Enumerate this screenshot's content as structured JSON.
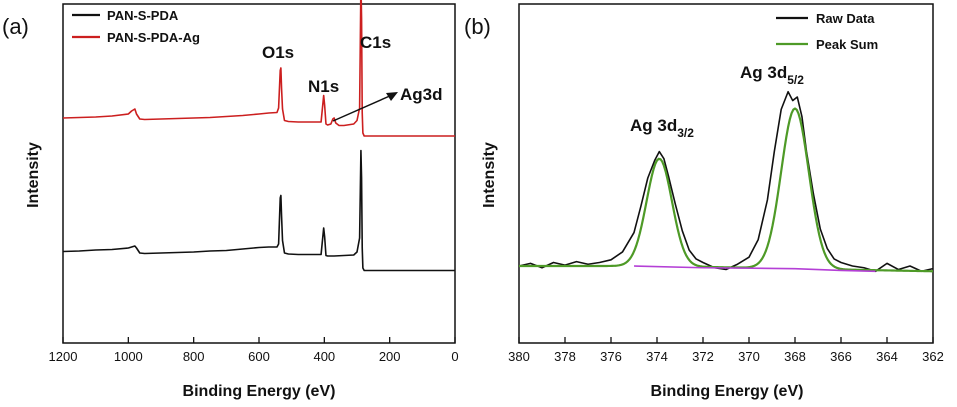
{
  "chart_data": [
    {
      "panel_label": "(a)",
      "type": "line",
      "xlabel": "Binding Energy (eV)",
      "ylabel": "Intensity",
      "xlim": [
        1200,
        0
      ],
      "x_ticks": [
        "1200",
        "1000",
        "800",
        "600",
        "400",
        "200",
        "0"
      ],
      "x_tick_values": [
        1200,
        1000,
        800,
        600,
        400,
        200,
        0
      ],
      "legend_position": "top-left",
      "series": [
        {
          "name": "PAN-S-PDA",
          "color": "#111111",
          "x": [
            1200,
            1150,
            1100,
            1050,
            1000,
            990,
            980,
            975,
            965,
            950,
            900,
            850,
            800,
            750,
            700,
            650,
            600,
            570,
            545,
            540,
            535,
            533,
            531,
            528,
            522,
            510,
            480,
            440,
            410,
            402,
            399,
            395,
            390,
            370,
            340,
            310,
            300,
            292,
            288,
            286,
            284,
            282,
            278,
            270,
            250,
            200,
            150,
            100,
            50,
            0
          ],
          "y": [
            0.33,
            0.34,
            0.36,
            0.37,
            0.4,
            0.42,
            0.44,
            0.4,
            0.3,
            0.29,
            0.3,
            0.31,
            0.32,
            0.34,
            0.35,
            0.38,
            0.41,
            0.42,
            0.42,
            0.48,
            1.4,
            1.45,
            1.05,
            0.55,
            0.3,
            0.28,
            0.27,
            0.27,
            0.27,
            0.8,
            0.62,
            0.25,
            0.24,
            0.24,
            0.25,
            0.26,
            0.32,
            0.6,
            2.35,
            1.8,
            0.4,
            0.0,
            -0.05,
            -0.05,
            -0.05,
            -0.05,
            -0.05,
            -0.05,
            -0.05,
            -0.05
          ]
        },
        {
          "name": "PAN-S-PDA-Ag",
          "color": "#cc1f1f",
          "x": [
            1200,
            1150,
            1100,
            1050,
            1000,
            990,
            980,
            975,
            965,
            950,
            900,
            850,
            800,
            750,
            700,
            650,
            600,
            570,
            545,
            540,
            535,
            533,
            531,
            528,
            522,
            510,
            480,
            440,
            410,
            402,
            399,
            395,
            390,
            380,
            374,
            370,
            365,
            355,
            340,
            310,
            300,
            292,
            288,
            286,
            284,
            282,
            278,
            270,
            250,
            200,
            150,
            100,
            50,
            0
          ],
          "y": [
            3.0,
            3.01,
            3.02,
            3.04,
            3.08,
            3.14,
            3.18,
            3.08,
            2.98,
            2.97,
            2.98,
            2.99,
            3.0,
            3.01,
            3.03,
            3.05,
            3.08,
            3.1,
            3.11,
            3.2,
            3.95,
            4.0,
            3.6,
            3.18,
            2.95,
            2.93,
            2.92,
            2.92,
            2.92,
            3.45,
            3.25,
            2.88,
            2.86,
            2.88,
            2.98,
            3.0,
            2.9,
            2.85,
            2.85,
            2.88,
            2.95,
            3.2,
            5.7,
            5.0,
            3.1,
            2.7,
            2.64,
            2.64,
            2.64,
            2.64,
            2.64,
            2.64,
            2.64,
            2.64
          ]
        }
      ],
      "annotations": [
        {
          "text": "O1s",
          "x": 533
        },
        {
          "text": "N1s",
          "x": 400
        },
        {
          "text": "C1s",
          "x": 285
        },
        {
          "text": "Ag3d",
          "x": 370
        }
      ]
    },
    {
      "panel_label": "(b)",
      "type": "line",
      "xlabel": "Binding Energy (eV)",
      "ylabel": "Intensity",
      "xlim": [
        380,
        362
      ],
      "x_ticks": [
        "380",
        "378",
        "376",
        "374",
        "372",
        "370",
        "368",
        "366",
        "364",
        "362"
      ],
      "x_tick_values": [
        380,
        378,
        376,
        374,
        372,
        370,
        368,
        366,
        364,
        362
      ],
      "legend_position": "top-right",
      "series": [
        {
          "name": "Raw Data",
          "color": "#111111",
          "x": [
            380,
            379.5,
            379,
            378.5,
            378,
            377.5,
            377,
            376.5,
            376,
            375.5,
            375,
            374.7,
            374.4,
            374.1,
            373.9,
            373.7,
            373.5,
            373.2,
            372.9,
            372.6,
            372.3,
            372,
            371.5,
            371,
            370.5,
            370,
            369.6,
            369.2,
            368.9,
            368.6,
            368.3,
            368.1,
            367.9,
            367.7,
            367.5,
            367.2,
            366.9,
            366.6,
            366.3,
            366,
            365.5,
            365,
            364.5,
            364,
            363.5,
            363,
            362.5,
            362
          ],
          "y": [
            0.0,
            0.03,
            -0.02,
            0.04,
            0.01,
            0.05,
            0.02,
            0.04,
            0.07,
            0.16,
            0.38,
            0.68,
            1.0,
            1.2,
            1.3,
            1.22,
            1.02,
            0.7,
            0.4,
            0.18,
            0.08,
            0.04,
            -0.02,
            -0.04,
            0.02,
            0.1,
            0.3,
            0.75,
            1.3,
            1.78,
            1.98,
            1.88,
            1.92,
            1.7,
            1.3,
            0.82,
            0.42,
            0.2,
            0.08,
            0.04,
            0.0,
            -0.02,
            -0.06,
            0.03,
            -0.04,
            0.0,
            -0.06,
            -0.03
          ]
        },
        {
          "name": "Peak Sum",
          "color": "#4e9a27",
          "peaks": [
            {
              "center": 373.9,
              "height": 1.22,
              "sigma": 0.55
            },
            {
              "center": 368.0,
              "height": 1.82,
              "sigma": 0.6
            }
          ],
          "baseline": [
            [
              380,
              0.0
            ],
            [
              374,
              0.0
            ],
            [
              362,
              -0.06
            ]
          ]
        },
        {
          "name": "",
          "color": "#b43fd6",
          "x": [
            375,
            372,
            368,
            366,
            364.5
          ],
          "y": [
            0.0,
            -0.02,
            -0.03,
            -0.05,
            -0.06
          ]
        }
      ],
      "annotations": [
        {
          "text": "Ag 3d",
          "sub": "3/2",
          "x": 373.9
        },
        {
          "text": "Ag 3d",
          "sub": "5/2",
          "x": 368.1
        }
      ]
    }
  ]
}
